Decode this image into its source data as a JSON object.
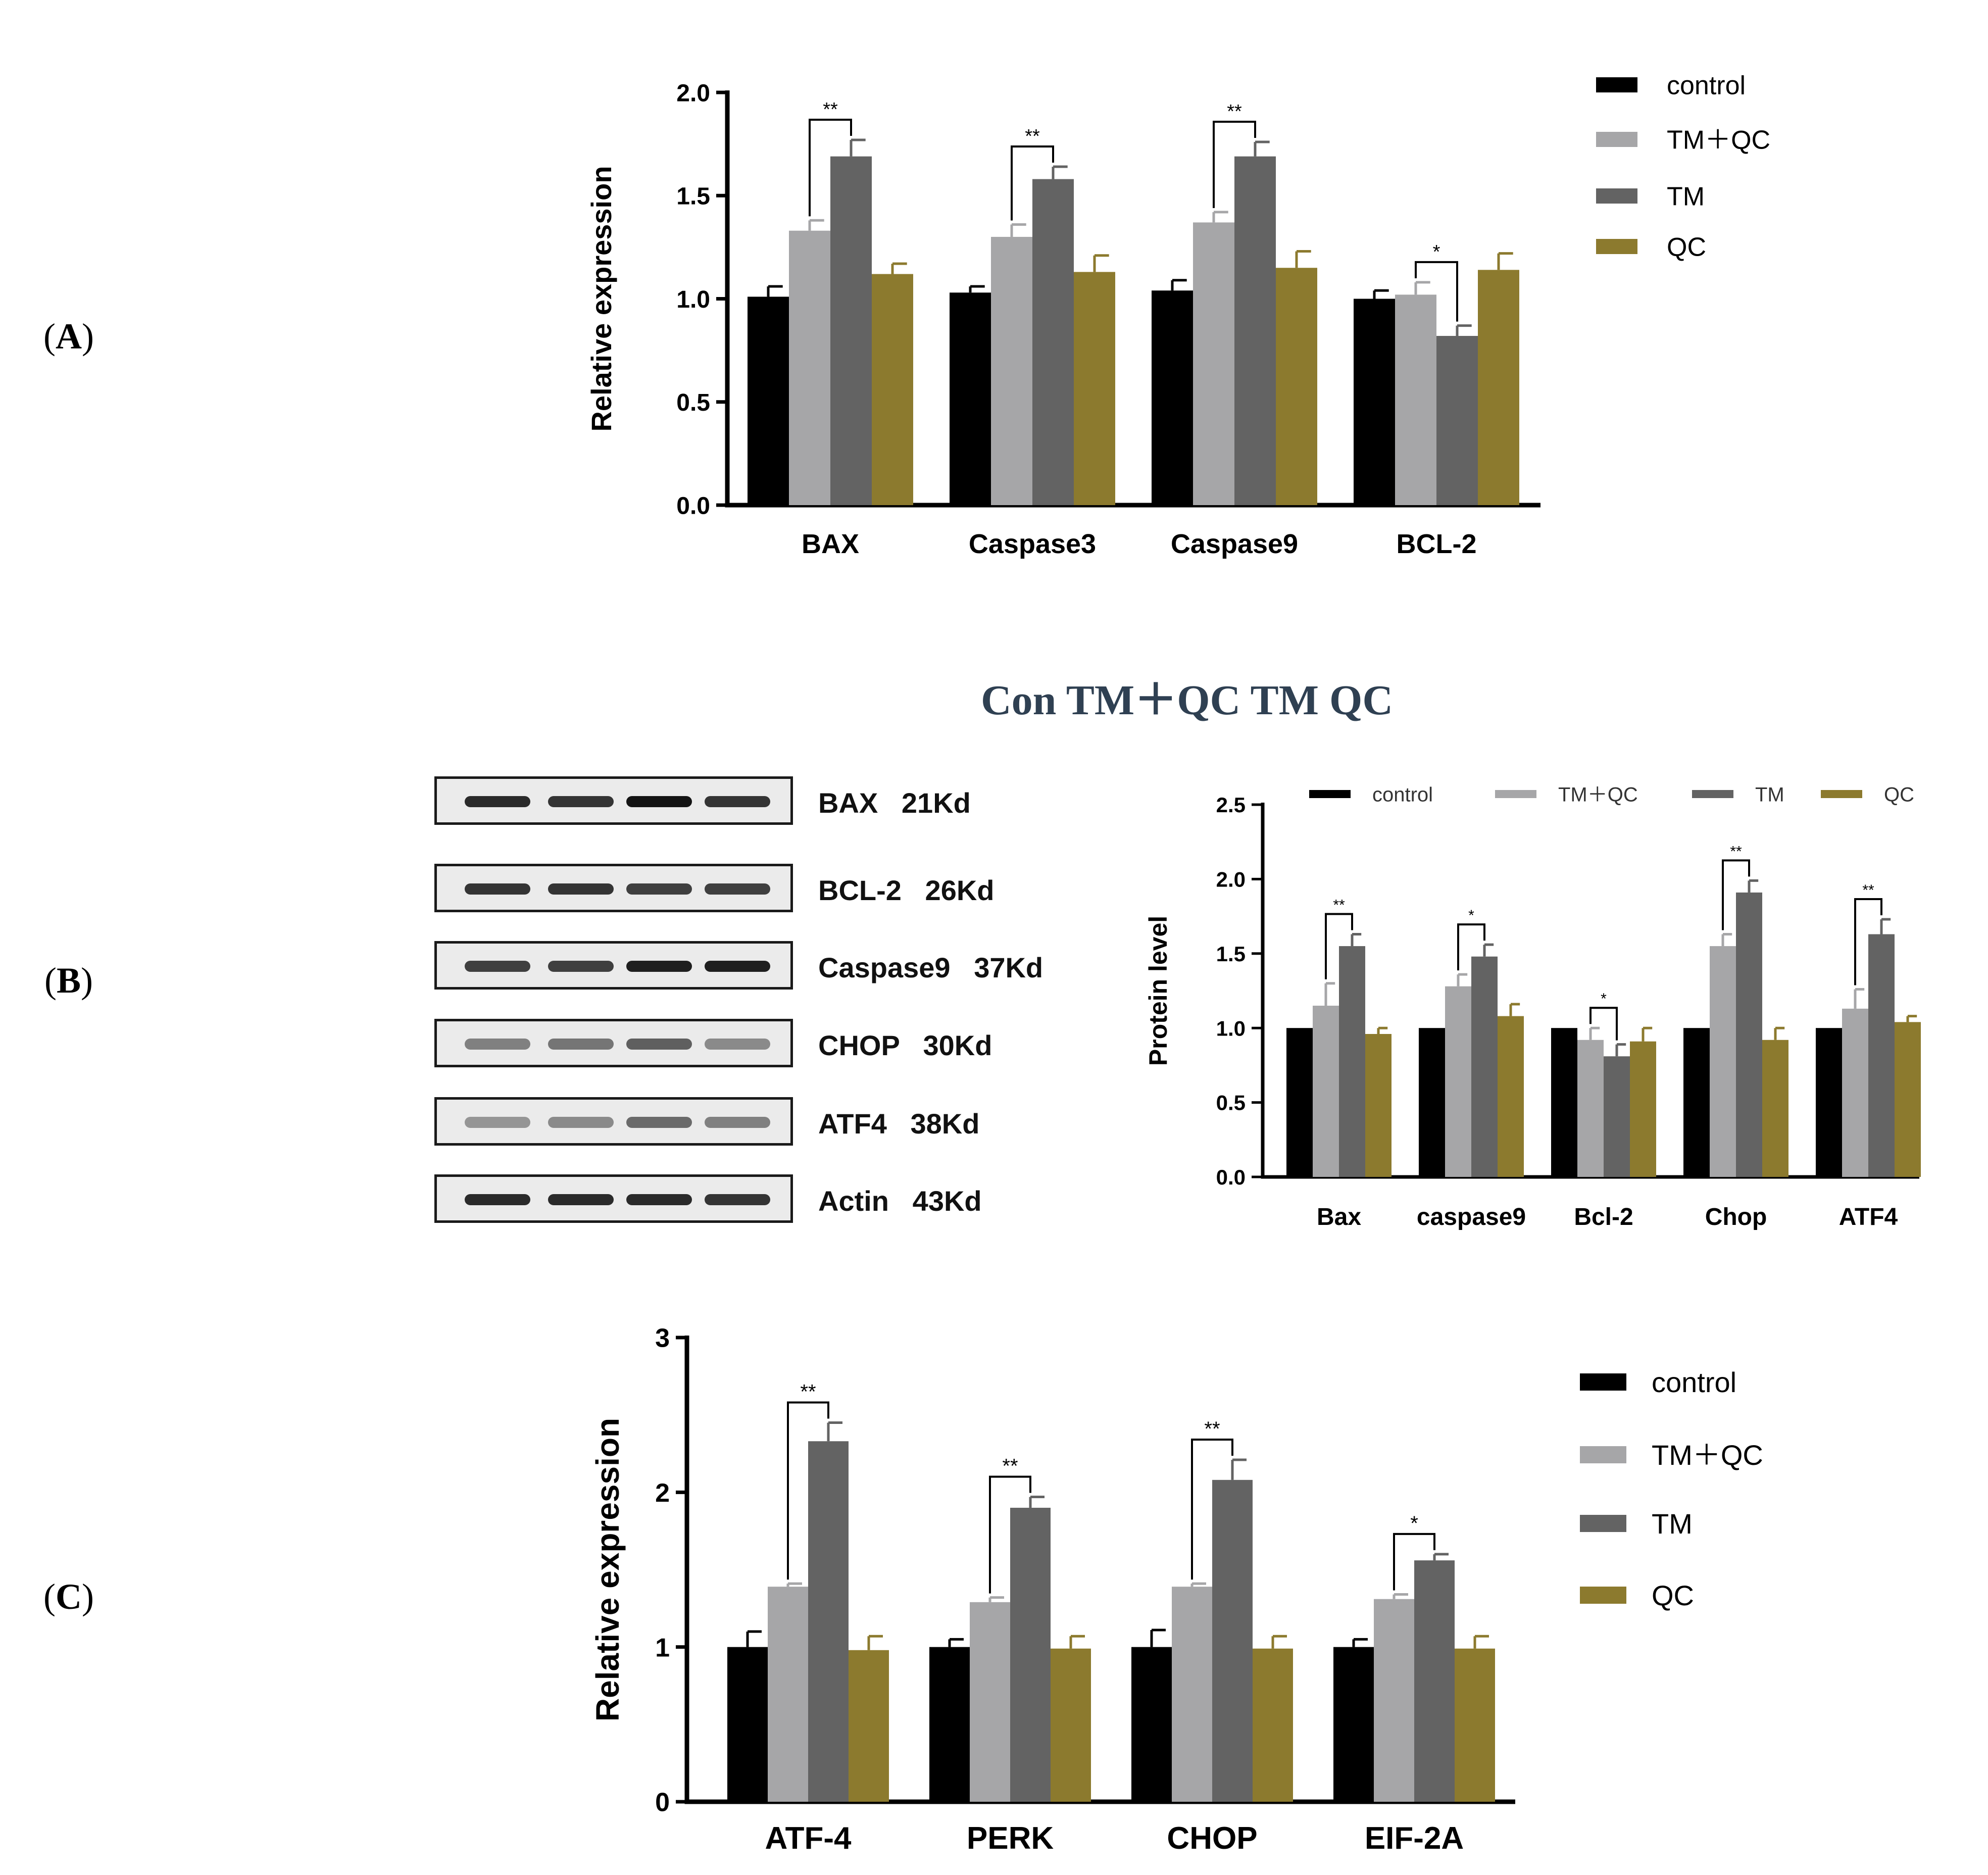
{
  "panels": {
    "a": "A",
    "b": "B",
    "c": "C"
  },
  "blot": {
    "header": "Con TM＋QC TM QC",
    "rows": [
      {
        "label": "BAX   21Kd",
        "intensity": [
          0.9,
          0.85,
          1.0,
          0.85
        ]
      },
      {
        "label": "BCL-2   26Kd",
        "intensity": [
          0.85,
          0.85,
          0.8,
          0.8
        ]
      },
      {
        "label": "Caspase9   37Kd",
        "intensity": [
          0.8,
          0.8,
          0.95,
          0.95
        ]
      },
      {
        "label": "CHOP   30Kd",
        "intensity": [
          0.5,
          0.55,
          0.65,
          0.45
        ]
      },
      {
        "label": "ATF4   38Kd",
        "intensity": [
          0.4,
          0.45,
          0.6,
          0.5
        ]
      },
      {
        "label": "Actin   43Kd",
        "intensity": [
          0.9,
          0.9,
          0.9,
          0.85
        ]
      }
    ]
  },
  "colors": {
    "control": "#000000",
    "tmqc": "#a6a6a8",
    "tm": "#636363",
    "qc": "#8c7a2e"
  },
  "chart_data": [
    {
      "id": "A",
      "type": "bar",
      "ylabel": "Relative  expression",
      "ylim": [
        0,
        2.0
      ],
      "yticks": [
        "0.0",
        "0.5",
        "1.0",
        "1.5",
        "2.0"
      ],
      "categories": [
        "BAX",
        "Caspase3",
        "Caspase9",
        "BCL-2"
      ],
      "legend_position": "right",
      "series": [
        {
          "name": "control",
          "key": "control",
          "values": [
            1.01,
            1.03,
            1.04,
            1.0
          ],
          "errors": [
            0.05,
            0.03,
            0.05,
            0.04
          ]
        },
        {
          "name": "TM＋QC",
          "key": "tmqc",
          "values": [
            1.33,
            1.3,
            1.37,
            1.02
          ],
          "errors": [
            0.05,
            0.06,
            0.05,
            0.06
          ]
        },
        {
          "name": "TM",
          "key": "tm",
          "values": [
            1.69,
            1.58,
            1.69,
            0.82
          ],
          "errors": [
            0.08,
            0.06,
            0.07,
            0.05
          ]
        },
        {
          "name": "QC",
          "key": "qc",
          "values": [
            1.12,
            1.13,
            1.15,
            1.14
          ],
          "errors": [
            0.05,
            0.08,
            0.08,
            0.08
          ]
        }
      ],
      "annotations": [
        {
          "category": 0,
          "label": "**"
        },
        {
          "category": 1,
          "label": "**"
        },
        {
          "category": 2,
          "label": "**"
        },
        {
          "category": 3,
          "label": "*"
        }
      ]
    },
    {
      "id": "B",
      "type": "bar",
      "ylabel": "Protein level",
      "ylim": [
        0,
        2.5
      ],
      "yticks": [
        "0.0",
        "0.5",
        "1.0",
        "1.5",
        "2.0",
        "2.5"
      ],
      "categories": [
        "Bax",
        "caspase9",
        "Bcl-2",
        "Chop",
        "ATF4"
      ],
      "legend_position": "top",
      "series": [
        {
          "name": "control",
          "key": "control",
          "values": [
            1.0,
            1.0,
            1.0,
            1.0,
            1.0
          ],
          "errors": [
            0,
            0,
            0,
            0,
            0
          ]
        },
        {
          "name": "TM＋QC",
          "key": "tmqc",
          "values": [
            1.15,
            1.28,
            0.92,
            1.55,
            1.13
          ],
          "errors": [
            0.15,
            0.08,
            0.08,
            0.08,
            0.13
          ]
        },
        {
          "name": "TM",
          "key": "tm",
          "values": [
            1.55,
            1.48,
            0.81,
            1.91,
            1.63
          ],
          "errors": [
            0.08,
            0.08,
            0.08,
            0.08,
            0.1
          ]
        },
        {
          "name": "QC",
          "key": "qc",
          "values": [
            0.96,
            1.08,
            0.91,
            0.92,
            1.04
          ],
          "errors": [
            0.04,
            0.08,
            0.09,
            0.08,
            0.04
          ]
        }
      ],
      "annotations": [
        {
          "category": 0,
          "label": "**"
        },
        {
          "category": 1,
          "label": "*"
        },
        {
          "category": 2,
          "label": "*"
        },
        {
          "category": 3,
          "label": "**"
        },
        {
          "category": 4,
          "label": "**"
        }
      ]
    },
    {
      "id": "C",
      "type": "bar",
      "ylabel": "Relative  expression",
      "ylim": [
        0,
        3
      ],
      "yticks": [
        "0",
        "1",
        "2",
        "3"
      ],
      "categories": [
        "ATF-4",
        "PERK",
        "CHOP",
        "EIF-2A"
      ],
      "legend_position": "right",
      "series": [
        {
          "name": "control",
          "key": "control",
          "values": [
            1.0,
            1.0,
            1.0,
            1.0
          ],
          "errors": [
            0.1,
            0.05,
            0.11,
            0.05
          ]
        },
        {
          "name": "TM＋QC",
          "key": "tmqc",
          "values": [
            1.39,
            1.29,
            1.39,
            1.31
          ],
          "errors": [
            0.02,
            0.03,
            0.02,
            0.03
          ]
        },
        {
          "name": "TM",
          "key": "tm",
          "values": [
            2.33,
            1.9,
            2.08,
            1.56
          ],
          "errors": [
            0.12,
            0.07,
            0.13,
            0.04
          ]
        },
        {
          "name": "QC",
          "key": "qc",
          "values": [
            0.98,
            0.99,
            0.99,
            0.99
          ],
          "errors": [
            0.09,
            0.08,
            0.08,
            0.08
          ]
        }
      ],
      "annotations": [
        {
          "category": 0,
          "label": "**"
        },
        {
          "category": 1,
          "label": "**"
        },
        {
          "category": 2,
          "label": "**"
        },
        {
          "category": 3,
          "label": "*"
        }
      ]
    }
  ]
}
